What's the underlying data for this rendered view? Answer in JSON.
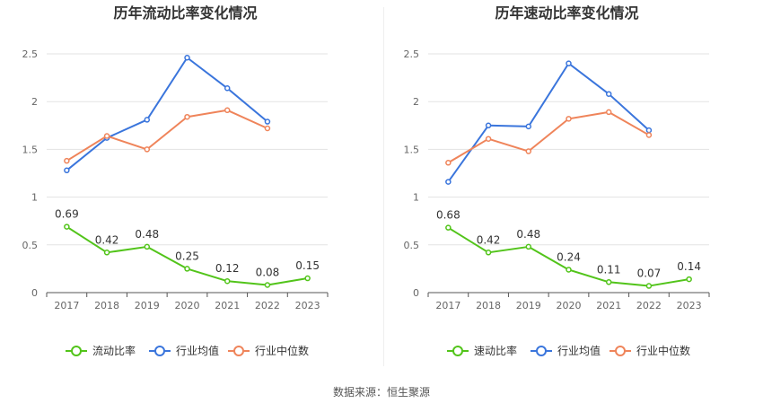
{
  "source_note": "数据来源：恒生聚源",
  "colors": {
    "company": "#52c41a",
    "avg": "#3a75dc",
    "median": "#ef845a",
    "grid": "#e3e3e3",
    "axis": "#666666"
  },
  "chart_data": [
    {
      "type": "line",
      "title": "历年流动比率变化情况",
      "categories": [
        "2017",
        "2018",
        "2019",
        "2020",
        "2021",
        "2022",
        "2023"
      ],
      "ylim": [
        0,
        2.5
      ],
      "yticks": [
        "0",
        "0.5",
        "1",
        "1.5",
        "2",
        "2.5"
      ],
      "grid": true,
      "legend_position": "bottom",
      "series": [
        {
          "name": "流动比率",
          "values": [
            0.69,
            0.42,
            0.48,
            0.25,
            0.12,
            0.08,
            0.15
          ],
          "labels": [
            "0.69",
            "0.42",
            "0.48",
            "0.25",
            "0.12",
            "0.08",
            "0.15"
          ]
        },
        {
          "name": "行业均值",
          "values": [
            1.28,
            1.62,
            1.81,
            2.46,
            2.14,
            1.79,
            null
          ]
        },
        {
          "name": "行业中位数",
          "values": [
            1.38,
            1.64,
            1.5,
            1.84,
            1.91,
            1.72,
            null
          ]
        }
      ]
    },
    {
      "type": "line",
      "title": "历年速动比率变化情况",
      "categories": [
        "2017",
        "2018",
        "2019",
        "2020",
        "2021",
        "2022",
        "2023"
      ],
      "ylim": [
        0,
        2.5
      ],
      "yticks": [
        "0",
        "0.5",
        "1",
        "1.5",
        "2",
        "2.5"
      ],
      "grid": true,
      "legend_position": "bottom",
      "series": [
        {
          "name": "速动比率",
          "values": [
            0.68,
            0.42,
            0.48,
            0.24,
            0.11,
            0.07,
            0.14
          ],
          "labels": [
            "0.68",
            "0.42",
            "0.48",
            "0.24",
            "0.11",
            "0.07",
            "0.14"
          ]
        },
        {
          "name": "行业均值",
          "values": [
            1.16,
            1.75,
            1.74,
            2.4,
            2.08,
            1.7,
            null
          ]
        },
        {
          "name": "行业中位数",
          "values": [
            1.36,
            1.61,
            1.48,
            1.82,
            1.89,
            1.65,
            null
          ]
        }
      ]
    }
  ]
}
